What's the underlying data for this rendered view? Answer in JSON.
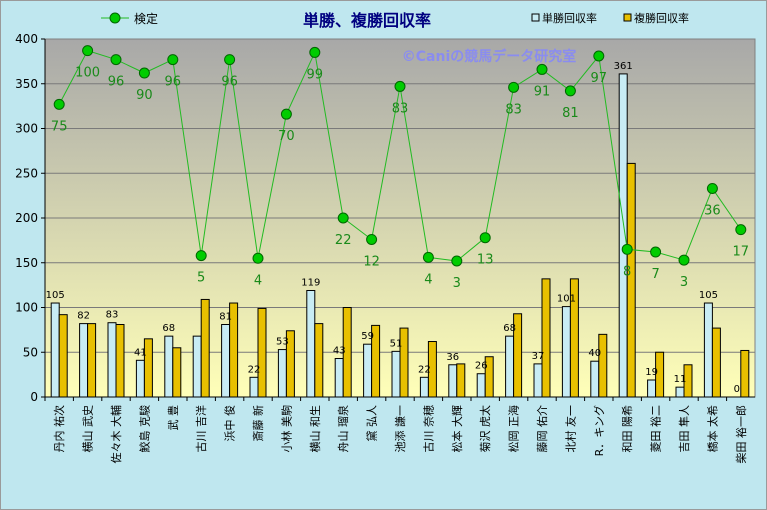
{
  "chart_data": {
    "type": "bar",
    "title": "単勝、複勝回収率",
    "watermark": "©Caniの競馬データ研究室",
    "ylim": [
      0,
      400
    ],
    "yticks": [
      0,
      50,
      100,
      150,
      200,
      250,
      300,
      350,
      400
    ],
    "secondary_ylim": [
      0,
      100
    ],
    "legend_position": "top",
    "grid": true,
    "categories": [
      "丹内 祐次",
      "横山 武史",
      "佐々木 大輔",
      "鮫島 克駿",
      "武 豊",
      "古川 吉洋",
      "浜中 俊",
      "斎藤 新",
      "小林 美駒",
      "横山 和生",
      "舟山 瑠泉",
      "黛 弘人",
      "池添 謙一",
      "古川 奈穂",
      "松本 大輝",
      "菊沢 虎太",
      "松岡 正海",
      "藤岡 佑介",
      "北村 友一",
      "R．キング",
      "和田 陽希",
      "菱田 裕二",
      "吉田 隼人",
      "橋本 太希",
      "柴田 裕一郎"
    ],
    "series": [
      {
        "name": "単勝回収率",
        "type": "bar",
        "color": "#c8ecf4",
        "values": [
          105,
          82,
          83,
          41,
          68,
          68,
          81,
          22,
          53,
          119,
          43,
          59,
          51,
          22,
          36,
          26,
          68,
          37,
          101,
          40,
          361,
          19,
          11,
          105,
          0
        ],
        "labels": [
          "105",
          "82",
          "83",
          "41",
          "68",
          "",
          "81",
          "22",
          "53",
          "119",
          "43",
          "59",
          "51",
          "22",
          "36",
          "26",
          "68",
          "37",
          "101",
          "40",
          "361",
          "19",
          "11",
          "105",
          "0"
        ]
      },
      {
        "name": "複勝回収率",
        "type": "bar",
        "color": "#e8c000",
        "values": [
          92,
          82,
          81,
          65,
          55,
          109,
          105,
          99,
          74,
          82,
          100,
          80,
          77,
          62,
          37,
          45,
          93,
          132,
          132,
          70,
          261,
          50,
          36,
          77,
          52
        ]
      },
      {
        "name": "検定",
        "type": "line",
        "axis": "secondary",
        "color": "#22bb22",
        "values": [
          75,
          100,
          96,
          90,
          96,
          5,
          96,
          4,
          70,
          99,
          22,
          12,
          83,
          4,
          3,
          13,
          83,
          91,
          81,
          97,
          8,
          7,
          3,
          36,
          17
        ],
        "plot_values": [
          327,
          387,
          377,
          362,
          377,
          158,
          377,
          155,
          316,
          385,
          200,
          176,
          347,
          156,
          152,
          178,
          346,
          366,
          342,
          381,
          165,
          162,
          153,
          233,
          187
        ]
      }
    ]
  },
  "colors": {
    "plot_bg_top": "#a8a8a8",
    "plot_bg_bottom": "#ffffb8",
    "outer_bg": "#bfe7ef",
    "title": "#000080",
    "watermark": "#8a8cf0",
    "line_label": "#1a8a1a"
  }
}
